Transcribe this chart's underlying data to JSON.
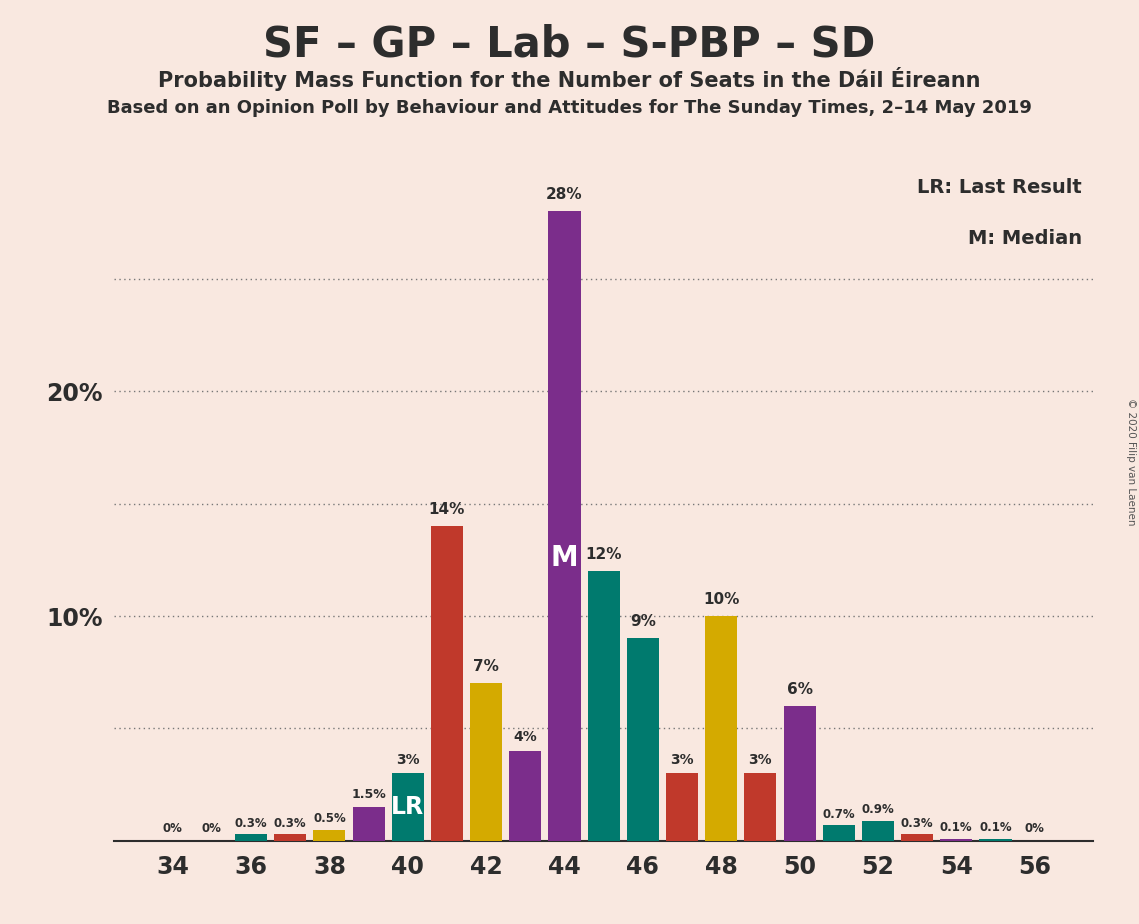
{
  "title": "SF – GP – Lab – S-PBP – SD",
  "subtitle": "Probability Mass Function for the Number of Seats in the Dáil Éireann",
  "source": "Based on an Opinion Poll by Behaviour and Attitudes for The Sunday Times, 2–14 May 2019",
  "copyright": "© 2020 Filip van Laenen",
  "background_color": "#f9e8e0",
  "seats": [
    34,
    35,
    36,
    37,
    38,
    39,
    40,
    41,
    42,
    43,
    44,
    45,
    46,
    47,
    48,
    49,
    50,
    51,
    52,
    53,
    54,
    55,
    56
  ],
  "probabilities": [
    0.0,
    0.0,
    0.3,
    0.3,
    0.5,
    1.5,
    3.0,
    14.0,
    7.0,
    4.0,
    28.0,
    12.0,
    9.0,
    3.0,
    10.0,
    3.0,
    6.0,
    0.7,
    0.9,
    0.3,
    0.1,
    0.1,
    0.0
  ],
  "bar_colors": [
    "#007a6e",
    "#c0392b",
    "#007a6e",
    "#c0392b",
    "#d4aa00",
    "#7b2d8b",
    "#007a6e",
    "#c0392b",
    "#d4aa00",
    "#7b2d8b",
    "#7b2d8b",
    "#007a6e",
    "#007a6e",
    "#c0392b",
    "#d4aa00",
    "#c0392b",
    "#7b2d8b",
    "#007a6e",
    "#007a6e",
    "#c0392b",
    "#7b2d8b",
    "#007a6e",
    "#c0392b"
  ],
  "lr_seat": 40,
  "median_seat": 44,
  "ylim": [
    0,
    30
  ],
  "grid_y": [
    5,
    10,
    15,
    20,
    25
  ],
  "ytick_positions": [
    10,
    20
  ],
  "ytick_labels": [
    "10%",
    "20%"
  ],
  "xlabel_seats": [
    34,
    36,
    38,
    40,
    42,
    44,
    46,
    48,
    50,
    52,
    54,
    56
  ],
  "title_fontsize": 30,
  "subtitle_fontsize": 15,
  "source_fontsize": 13
}
